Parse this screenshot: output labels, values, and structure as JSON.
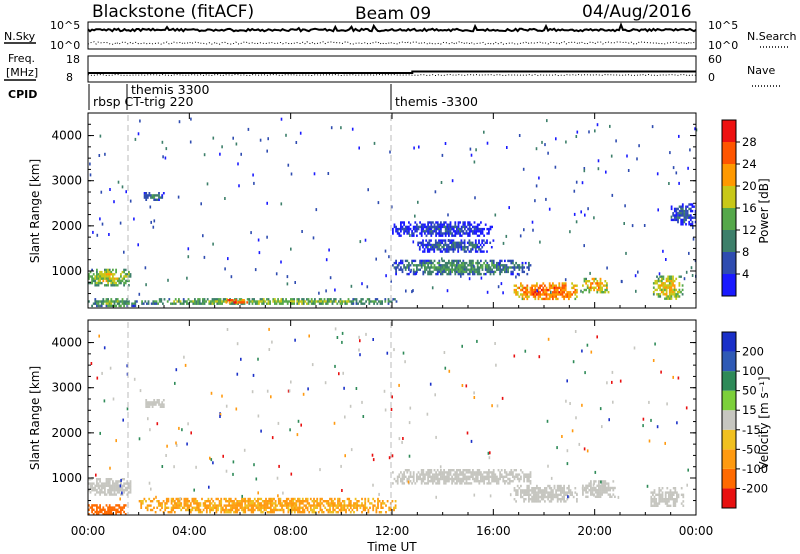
{
  "header": {
    "station": "Blackstone (fitACF)",
    "beam": "Beam 09",
    "date": "04/Aug/2016"
  },
  "noise_panel": {
    "left_label": "N.Sky",
    "right_label": "N.Search",
    "left_ticks": [
      "10^5",
      "10^0"
    ],
    "right_ticks": [
      "10^5",
      "10^0"
    ]
  },
  "freq_panel": {
    "left_label": "Freq.",
    "left_unit": "[MHz]",
    "left_ticks": [
      "18",
      "8"
    ],
    "right_label": "Nave",
    "right_ticks": [
      "60",
      "0"
    ]
  },
  "cpid": {
    "label": "CPID",
    "entries": [
      {
        "text": "rbsp CT-trig 220",
        "time_h": 0.0
      },
      {
        "text": "themis 3300",
        "time_h": 1.5
      },
      {
        "text": "themis -3300",
        "time_h": 12.0
      }
    ]
  },
  "x_axis": {
    "label": "Time UT",
    "ticks": [
      "00:00",
      "04:00",
      "08:00",
      "12:00",
      "16:00",
      "20:00",
      "00:00"
    ]
  },
  "power_colorbar": {
    "label": "Power [dB]",
    "ticks": [
      "4",
      "8",
      "12",
      "16",
      "20",
      "24",
      "28"
    ],
    "colors": [
      "#1a1aff",
      "#2f4cb0",
      "#3d7f6a",
      "#55a84a",
      "#c8c818",
      "#ff9900",
      "#ff5500",
      "#ee1111"
    ]
  },
  "velocity_colorbar": {
    "label": "Velocity [m s⁻¹]",
    "ticks": [
      "200",
      "100",
      "50",
      "15",
      "-15",
      "-50",
      "-100",
      "-200"
    ],
    "colors": [
      "#1a30c8",
      "#2f5ab5",
      "#2e8a58",
      "#7ccf3a",
      "#c6c6c0",
      "#f0c020",
      "#ff9a10",
      "#ff6a00",
      "#e81010"
    ]
  },
  "chart_data": {
    "type": "heatmap",
    "title": "Blackstone (fitACF) Beam 09 04/Aug/2016",
    "xlabel": "Time UT",
    "xlim_hours": [
      0,
      24
    ],
    "panels": [
      {
        "name": "Power",
        "ylabel": "Slant Range [km]",
        "ylim": [
          180,
          4500
        ],
        "yticks": [
          "1000",
          "2000",
          "3000",
          "4000"
        ],
        "color_scale": "Power [dB]",
        "regions": [
          {
            "t0": 0.0,
            "t1": 1.7,
            "r0": 650,
            "r1": 1050,
            "value": 18
          },
          {
            "t0": 0.0,
            "t1": 2.0,
            "r0": 200,
            "r1": 400,
            "value": 14
          },
          {
            "t0": 2.1,
            "t1": 12.2,
            "r0": 250,
            "r1": 400,
            "value": 16
          },
          {
            "t0": 5.3,
            "t1": 6.3,
            "r0": 260,
            "r1": 380,
            "value": 28
          },
          {
            "t0": 2.2,
            "t1": 3.0,
            "r0": 2550,
            "r1": 2750,
            "value": 10
          },
          {
            "t0": 12.0,
            "t1": 17.5,
            "r0": 900,
            "r1": 1250,
            "value": 12
          },
          {
            "t0": 13.0,
            "t1": 16.0,
            "r0": 1400,
            "r1": 1700,
            "value": 8
          },
          {
            "t0": 12.0,
            "t1": 16.0,
            "r0": 1750,
            "r1": 2100,
            "value": 6
          },
          {
            "t0": 16.8,
            "t1": 19.3,
            "r0": 350,
            "r1": 750,
            "value": 26
          },
          {
            "t0": 19.5,
            "t1": 20.6,
            "r0": 500,
            "r1": 850,
            "value": 22
          },
          {
            "t0": 22.3,
            "t1": 23.5,
            "r0": 350,
            "r1": 900,
            "value": 20
          },
          {
            "t0": 23.0,
            "t1": 24.0,
            "r0": 2000,
            "r1": 2500,
            "value": 8
          }
        ]
      },
      {
        "name": "Velocity",
        "ylabel": "Slant Range [km]",
        "ylim": [
          180,
          4500
        ],
        "yticks": [
          "1000",
          "2000",
          "3000",
          "4000"
        ],
        "color_scale": "Velocity [m s⁻¹]",
        "regions": [
          {
            "t0": 0.0,
            "t1": 1.7,
            "r0": 600,
            "r1": 1000,
            "value": 0
          },
          {
            "t0": 0.0,
            "t1": 1.5,
            "r0": 200,
            "r1": 420,
            "value": -150
          },
          {
            "t0": 2.0,
            "t1": 12.2,
            "r0": 220,
            "r1": 560,
            "value": -60
          },
          {
            "t0": 2.2,
            "t1": 3.0,
            "r0": 2550,
            "r1": 2750,
            "value": 0
          },
          {
            "t0": 12.0,
            "t1": 17.5,
            "r0": 850,
            "r1": 1200,
            "value": 0
          },
          {
            "t0": 16.8,
            "t1": 19.3,
            "r0": 450,
            "r1": 850,
            "value": 0
          },
          {
            "t0": 19.5,
            "t1": 20.8,
            "r0": 550,
            "r1": 950,
            "value": 0
          },
          {
            "t0": 22.2,
            "t1": 23.5,
            "r0": 350,
            "r1": 800,
            "value": 0
          }
        ]
      }
    ]
  }
}
